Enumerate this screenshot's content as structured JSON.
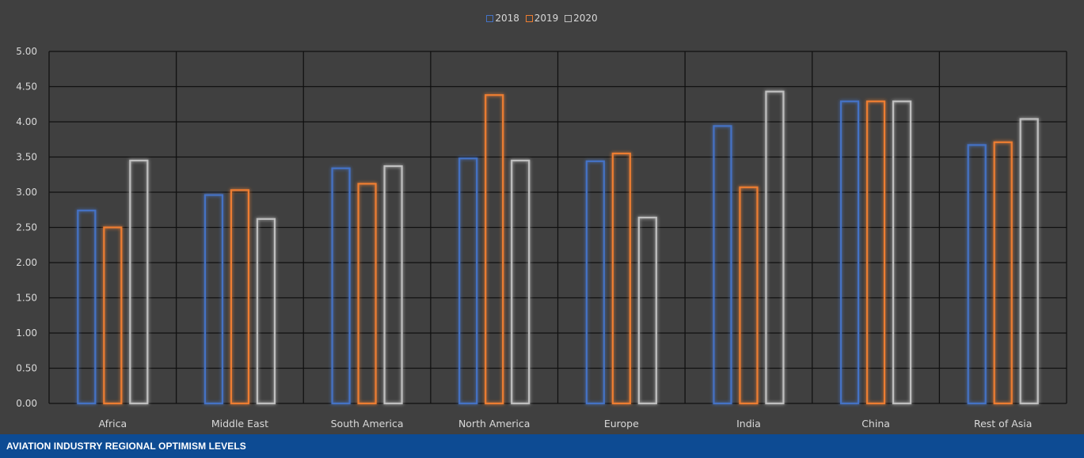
{
  "chart_data": {
    "type": "bar",
    "categories": [
      "Africa",
      "Middle East",
      "South America",
      "North America",
      "Europe",
      "India",
      "China",
      "Rest of Asia"
    ],
    "series": [
      {
        "name": "2018",
        "color": "#4472c4",
        "values": [
          2.74,
          2.96,
          3.34,
          3.48,
          3.44,
          3.94,
          4.29,
          3.67
        ]
      },
      {
        "name": "2019",
        "color": "#ed7d31",
        "values": [
          2.5,
          3.03,
          3.12,
          4.38,
          3.55,
          3.07,
          4.29,
          3.71
        ]
      },
      {
        "name": "2020",
        "color": "#bfbfbf",
        "values": [
          3.45,
          2.62,
          3.37,
          3.45,
          2.64,
          4.43,
          4.29,
          4.04
        ]
      }
    ],
    "ylim": [
      0,
      5
    ],
    "yticks": [
      "0.00",
      "0.50",
      "1.00",
      "1.50",
      "2.00",
      "2.50",
      "3.00",
      "3.50",
      "4.00",
      "4.50",
      "5.00"
    ],
    "grid": true,
    "legend": "top-center",
    "background": "#404040",
    "title": "",
    "xlabel": "",
    "ylabel": ""
  },
  "footer": {
    "caption": "AVIATION INDUSTRY REGIONAL OPTIMISM LEVELS",
    "color": "#0d4b93"
  }
}
